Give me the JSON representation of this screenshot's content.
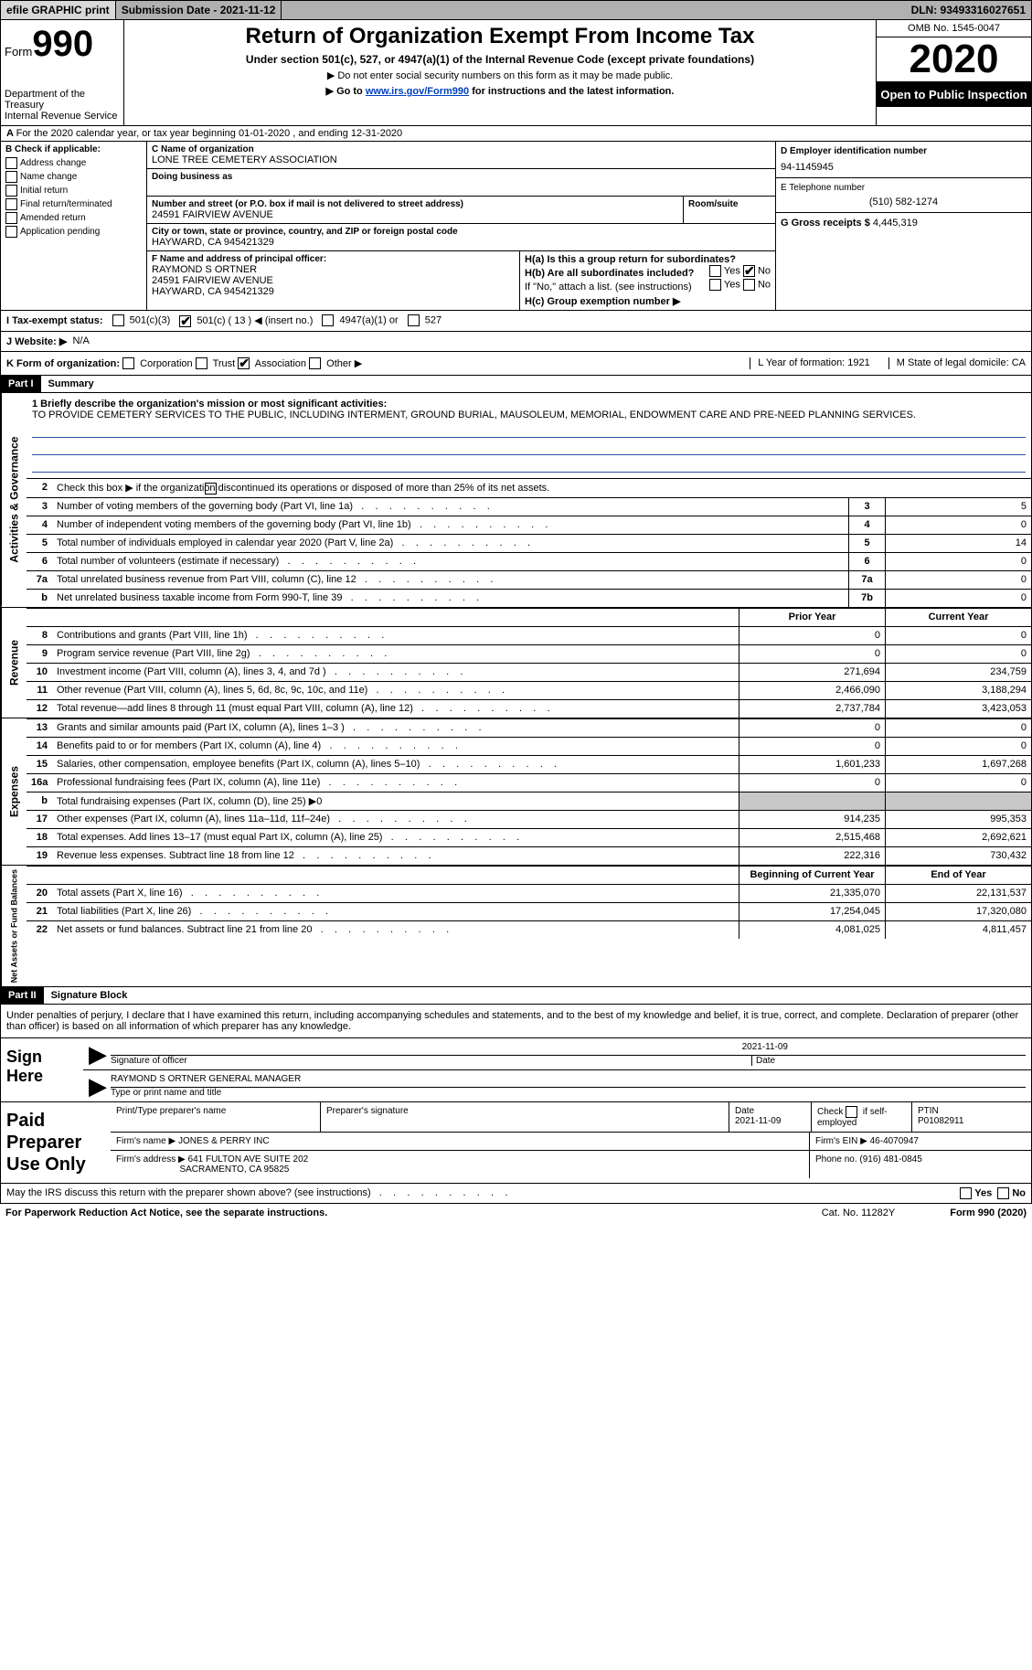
{
  "topbar": {
    "efile": "efile GRAPHIC print",
    "submission": "Submission Date - 2021-11-12",
    "dln": "DLN: 93493316027651"
  },
  "header": {
    "form_prefix": "Form",
    "form_number": "990",
    "dept": "Department of the Treasury\nInternal Revenue Service",
    "title": "Return of Organization Exempt From Income Tax",
    "sub1": "Under section 501(c), 527, or 4947(a)(1) of the Internal Revenue Code (except private foundations)",
    "sub2": "▶ Do not enter social security numbers on this form as it may be made public.",
    "sub3_pre": "▶ Go to ",
    "sub3_link": "www.irs.gov/Form990",
    "sub3_post": " for instructions and the latest information.",
    "omb": "OMB No. 1545-0047",
    "year": "2020",
    "open": "Open to Public Inspection"
  },
  "sec_a": "For the 2020 calendar year, or tax year beginning 01-01-2020    , and ending 12-31-2020",
  "col_b": {
    "hdr": "B Check if applicable:",
    "opts": [
      "Address change",
      "Name change",
      "Initial return",
      "Final return/terminated",
      "Amended return",
      "Application pending"
    ]
  },
  "mid": {
    "c_lab": "C Name of organization",
    "c_val": "LONE TREE CEMETERY ASSOCIATION",
    "dba_lab": "Doing business as",
    "addr_lab": "Number and street (or P.O. box if mail is not delivered to street address)",
    "room_lab": "Room/suite",
    "addr_val": "24591 FAIRVIEW AVENUE",
    "city_lab": "City or town, state or province, country, and ZIP or foreign postal code",
    "city_val": "HAYWARD, CA  945421329",
    "f_lab": "F Name and address of principal officer:",
    "f_val": "RAYMOND S ORTNER\n24591 FAIRVIEW AVENUE\nHAYWARD, CA  945421329"
  },
  "col_r": {
    "d_lab": "D Employer identification number",
    "d_val": "94-1145945",
    "e_lab": "E Telephone number",
    "e_val": "(510) 582-1274",
    "g_lab": "G Gross receipts $",
    "g_val": "4,445,319",
    "ha": "H(a)  Is this a group return for subordinates?",
    "hb": "H(b)  Are all subordinates included?",
    "h_yes": "Yes",
    "h_no": "No",
    "h_note": "If \"No,\" attach a list. (see instructions)",
    "hc": "H(c)  Group exemption number ▶"
  },
  "status": {
    "i_lab": "I    Tax-exempt status:",
    "o1": "501(c)(3)",
    "o2": "501(c) ( 13 ) ◀ (insert no.)",
    "o3": "4947(a)(1) or",
    "o4": "527"
  },
  "web": {
    "j_lab": "J   Website: ▶",
    "j_val": "N/A"
  },
  "k": {
    "lab": "K Form of organization:",
    "o1": "Corporation",
    "o2": "Trust",
    "o3": "Association",
    "o4": "Other ▶",
    "l": "L Year of formation: 1921",
    "m": "M State of legal domicile: CA"
  },
  "part1": {
    "hdr": "Part I",
    "title": "Summary"
  },
  "mission": {
    "lab": "1  Briefly describe the organization's mission or most significant activities:",
    "text": "TO PROVIDE CEMETERY SERVICES TO THE PUBLIC, INCLUDING INTERMENT, GROUND BURIAL, MAUSOLEUM, MEMORIAL, ENDOWMENT CARE AND PRE-NEED PLANNING SERVICES."
  },
  "gov": {
    "l2": "Check this box ▶        if the organization discontinued its operations or disposed of more than 25% of its net assets.",
    "rows": [
      {
        "n": "3",
        "d": "Number of voting members of the governing body (Part VI, line 1a)",
        "b": "3",
        "v": "5"
      },
      {
        "n": "4",
        "d": "Number of independent voting members of the governing body (Part VI, line 1b)",
        "b": "4",
        "v": "0"
      },
      {
        "n": "5",
        "d": "Total number of individuals employed in calendar year 2020 (Part V, line 2a)",
        "b": "5",
        "v": "14"
      },
      {
        "n": "6",
        "d": "Total number of volunteers (estimate if necessary)",
        "b": "6",
        "v": "0"
      },
      {
        "n": "7a",
        "d": "Total unrelated business revenue from Part VIII, column (C), line 12",
        "b": "7a",
        "v": "0"
      },
      {
        "n": "b",
        "d": "Net unrelated business taxable income from Form 990-T, line 39",
        "b": "7b",
        "v": "0"
      }
    ]
  },
  "rev": {
    "hdr_prior": "Prior Year",
    "hdr_curr": "Current Year",
    "rows": [
      {
        "n": "8",
        "d": "Contributions and grants (Part VIII, line 1h)",
        "p": "0",
        "c": "0"
      },
      {
        "n": "9",
        "d": "Program service revenue (Part VIII, line 2g)",
        "p": "0",
        "c": "0"
      },
      {
        "n": "10",
        "d": "Investment income (Part VIII, column (A), lines 3, 4, and 7d )",
        "p": "271,694",
        "c": "234,759"
      },
      {
        "n": "11",
        "d": "Other revenue (Part VIII, column (A), lines 5, 6d, 8c, 9c, 10c, and 11e)",
        "p": "2,466,090",
        "c": "3,188,294"
      },
      {
        "n": "12",
        "d": "Total revenue—add lines 8 through 11 (must equal Part VIII, column (A), line 12)",
        "p": "2,737,784",
        "c": "3,423,053"
      }
    ]
  },
  "exp": {
    "rows": [
      {
        "n": "13",
        "d": "Grants and similar amounts paid (Part IX, column (A), lines 1–3 )",
        "p": "0",
        "c": "0"
      },
      {
        "n": "14",
        "d": "Benefits paid to or for members (Part IX, column (A), line 4)",
        "p": "0",
        "c": "0"
      },
      {
        "n": "15",
        "d": "Salaries, other compensation, employee benefits (Part IX, column (A), lines 5–10)",
        "p": "1,601,233",
        "c": "1,697,268"
      },
      {
        "n": "16a",
        "d": "Professional fundraising fees (Part IX, column (A), line 11e)",
        "p": "0",
        "c": "0"
      },
      {
        "n": "b",
        "d": "Total fundraising expenses (Part IX, column (D), line 25) ▶0",
        "p": "",
        "c": "",
        "gray": true
      },
      {
        "n": "17",
        "d": "Other expenses (Part IX, column (A), lines 11a–11d, 11f–24e)",
        "p": "914,235",
        "c": "995,353"
      },
      {
        "n": "18",
        "d": "Total expenses. Add lines 13–17 (must equal Part IX, column (A), line 25)",
        "p": "2,515,468",
        "c": "2,692,621"
      },
      {
        "n": "19",
        "d": "Revenue less expenses. Subtract line 18 from line 12",
        "p": "222,316",
        "c": "730,432"
      }
    ]
  },
  "net": {
    "hdr_b": "Beginning of Current Year",
    "hdr_e": "End of Year",
    "rows": [
      {
        "n": "20",
        "d": "Total assets (Part X, line 16)",
        "p": "21,335,070",
        "c": "22,131,537"
      },
      {
        "n": "21",
        "d": "Total liabilities (Part X, line 26)",
        "p": "17,254,045",
        "c": "17,320,080"
      },
      {
        "n": "22",
        "d": "Net assets or fund balances. Subtract line 21 from line 20",
        "p": "4,081,025",
        "c": "4,811,457"
      }
    ]
  },
  "part2": {
    "hdr": "Part II",
    "title": "Signature Block"
  },
  "sig": {
    "decl": "Under penalties of perjury, I declare that I have examined this return, including accompanying schedules and statements, and to the best of my knowledge and belief, it is true, correct, and complete. Declaration of preparer (other than officer) is based on all information of which preparer has any knowledge.",
    "sign_here": "Sign Here",
    "date": "2021-11-09",
    "sig_lab": "Signature of officer",
    "date_lab": "Date",
    "name": "RAYMOND S ORTNER  GENERAL MANAGER",
    "name_lab": "Type or print name and title"
  },
  "prep": {
    "title": "Paid Preparer Use Only",
    "h1": "Print/Type preparer's name",
    "h2": "Preparer's signature",
    "h3": "Date",
    "h3v": "2021-11-09",
    "h4a": "Check",
    "h4b": "if self-employed",
    "h5": "PTIN",
    "h5v": "P01082911",
    "firm_lab": "Firm's name    ▶",
    "firm": "JONES & PERRY INC",
    "ein_lab": "Firm's EIN ▶",
    "ein": "46-4070947",
    "addr_lab": "Firm's address ▶",
    "addr1": "641 FULTON AVE SUITE 202",
    "addr2": "SACRAMENTO, CA  95825",
    "phone_lab": "Phone no.",
    "phone": "(916) 481-0845"
  },
  "footer": {
    "discuss": "May the IRS discuss this return with the preparer shown above? (see instructions)",
    "yes": "Yes",
    "no": "No",
    "pra": "For Paperwork Reduction Act Notice, see the separate instructions.",
    "cat": "Cat. No. 11282Y",
    "form": "Form 990 (2020)"
  },
  "side": {
    "gov": "Activities & Governance",
    "rev": "Revenue",
    "exp": "Expenses",
    "net": "Net Assets or Fund Balances"
  }
}
